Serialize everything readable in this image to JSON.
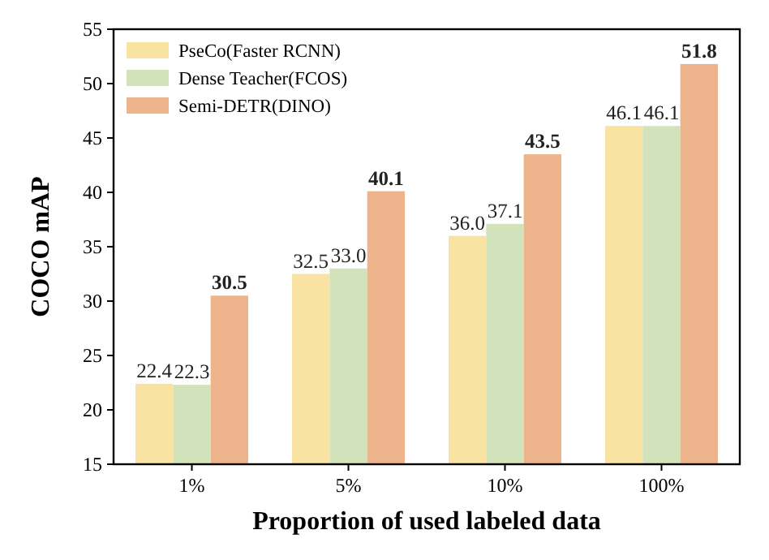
{
  "chart_data": {
    "type": "bar",
    "xlabel": "Proportion of used labeled data",
    "ylabel": "COCO mAP",
    "categories": [
      "1%",
      "5%",
      "10%",
      "100%"
    ],
    "series": [
      {
        "name": "PseCo(Faster RCNN)",
        "color": "#f8e3a2",
        "values": [
          22.4,
          32.5,
          36.0,
          46.1
        ],
        "value_labels": [
          "22.4",
          "32.5",
          "36.0",
          "46.1"
        ]
      },
      {
        "name": "Dense Teacher(FCOS)",
        "color": "#d2e2bb",
        "values": [
          22.3,
          33.0,
          37.1,
          46.1
        ],
        "value_labels": [
          "22.3",
          "33.0",
          "37.1",
          "46.1"
        ]
      },
      {
        "name": "Semi-DETR(DINO)",
        "color": "#edb38a",
        "values": [
          30.5,
          40.1,
          43.5,
          51.8
        ],
        "value_labels": [
          "30.5",
          "40.1",
          "43.5",
          "51.8"
        ]
      }
    ],
    "ylim": [
      15,
      55
    ],
    "yticks": [
      15,
      20,
      25,
      30,
      35,
      40,
      45,
      50,
      55
    ],
    "grid": false,
    "legend": "top left"
  }
}
